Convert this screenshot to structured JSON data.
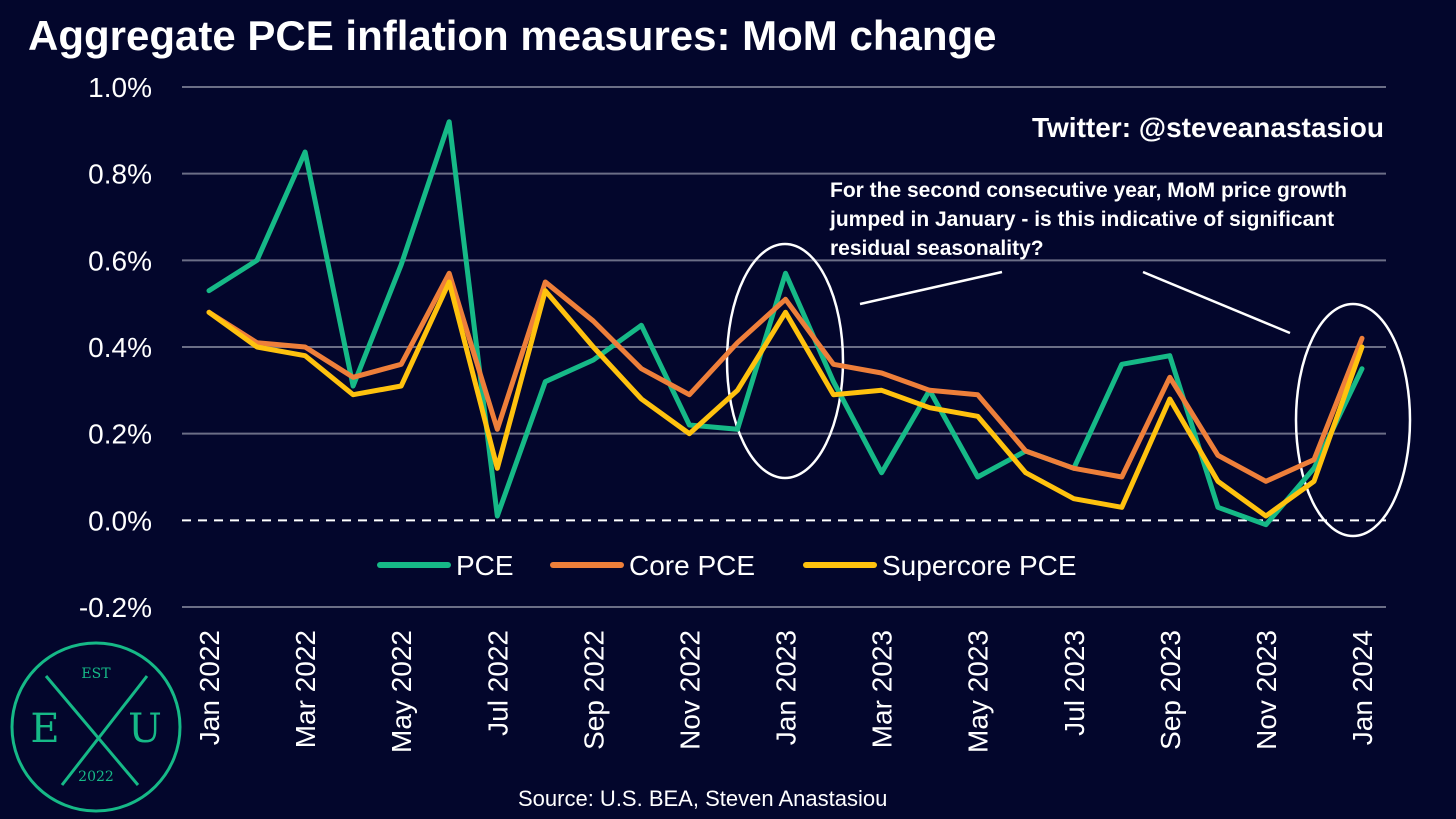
{
  "title": "Aggregate PCE inflation measures: MoM change",
  "twitter": "Twitter: @steveanastasiou",
  "annotation": "For the second consecutive year, MoM price growth jumped in January - is this indicative of significant residual seasonality?",
  "source": "Source: U.S. BEA, Steven Anastasiou",
  "logo": {
    "top": "EST",
    "left": "E",
    "right": "U",
    "bottom": "2022"
  },
  "colors": {
    "background": "#03062c",
    "pce": "#16b987",
    "core": "#ee7f3a",
    "supercore": "#ffc20e",
    "grid": "#6b6e86"
  },
  "chart_data": {
    "type": "line",
    "x": [
      "Jan 2022",
      "Feb 2022",
      "Mar 2022",
      "Apr 2022",
      "May 2022",
      "Jun 2022",
      "Jul 2022",
      "Aug 2022",
      "Sep 2022",
      "Oct 2022",
      "Nov 2022",
      "Dec 2022",
      "Jan 2023",
      "Feb 2023",
      "Mar 2023",
      "Apr 2023",
      "May 2023",
      "Jun 2023",
      "Jul 2023",
      "Aug 2023",
      "Sep 2023",
      "Oct 2023",
      "Nov 2023",
      "Dec 2023",
      "Jan 2024"
    ],
    "x_tick_labels": [
      "Jan 2022",
      "Mar 2022",
      "May 2022",
      "Jul 2022",
      "Sep 2022",
      "Nov 2022",
      "Jan 2023",
      "Mar 2023",
      "May 2023",
      "Jul 2023",
      "Sep 2023",
      "Nov 2023",
      "Jan 2024"
    ],
    "ylim": [
      -0.2,
      1.0
    ],
    "y_ticks": [
      -0.2,
      0.0,
      0.2,
      0.4,
      0.6,
      0.8,
      1.0
    ],
    "y_tick_labels": [
      "-0.2%",
      "0.0%",
      "0.2%",
      "0.4%",
      "0.6%",
      "0.8%",
      "1.0%"
    ],
    "grid": "horizontal",
    "zero_line": "dashed",
    "legend": "bottom-center",
    "series": [
      {
        "name": "PCE",
        "color": "#16b987",
        "values": [
          0.53,
          0.6,
          0.85,
          0.31,
          0.59,
          0.92,
          0.01,
          0.32,
          0.37,
          0.45,
          0.22,
          0.21,
          0.57,
          0.32,
          0.11,
          0.3,
          0.1,
          0.16,
          0.12,
          0.36,
          0.38,
          0.03,
          -0.01,
          0.12,
          0.35
        ]
      },
      {
        "name": "Core PCE",
        "color": "#ee7f3a",
        "values": [
          0.48,
          0.41,
          0.4,
          0.33,
          0.36,
          0.57,
          0.21,
          0.55,
          0.46,
          0.35,
          0.29,
          0.41,
          0.51,
          0.36,
          0.34,
          0.3,
          0.29,
          0.16,
          0.12,
          0.1,
          0.33,
          0.15,
          0.09,
          0.14,
          0.42
        ]
      },
      {
        "name": "Supercore PCE",
        "color": "#ffc20e",
        "values": [
          0.48,
          0.4,
          0.38,
          0.29,
          0.31,
          0.55,
          0.12,
          0.53,
          0.4,
          0.28,
          0.2,
          0.3,
          0.48,
          0.29,
          0.3,
          0.26,
          0.24,
          0.11,
          0.05,
          0.03,
          0.28,
          0.09,
          0.01,
          0.09,
          0.4
        ]
      }
    ]
  }
}
